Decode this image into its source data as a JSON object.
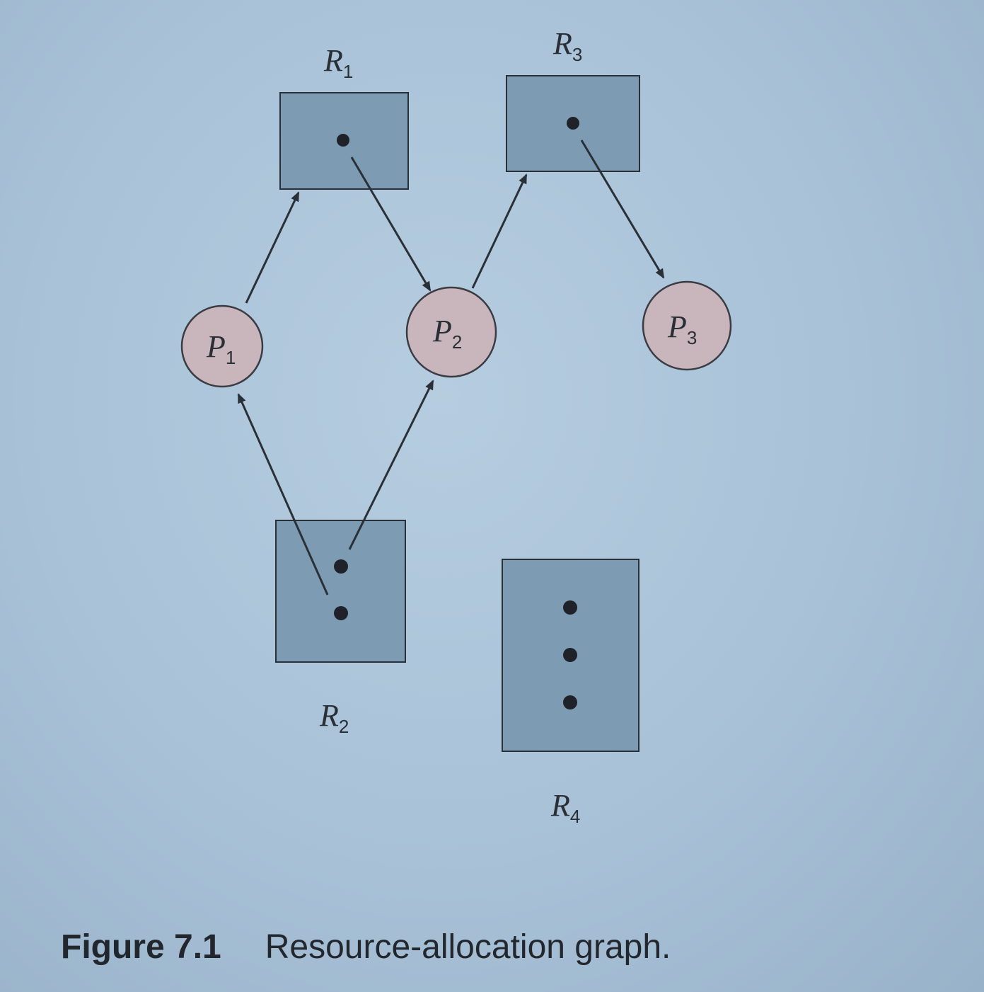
{
  "colors": {
    "resource_fill": "#7d9bb3",
    "resource_stroke": "#2a3038",
    "process_fill": "#c9b5bc",
    "process_stroke": "#3a3c42",
    "edge": "#2a3038",
    "dot": "#1f2329"
  },
  "resources": [
    {
      "id": "R1",
      "letter": "R",
      "sub": "1",
      "instances": 1
    },
    {
      "id": "R2",
      "letter": "R",
      "sub": "2",
      "instances": 2
    },
    {
      "id": "R3",
      "letter": "R",
      "sub": "3",
      "instances": 1
    },
    {
      "id": "R4",
      "letter": "R",
      "sub": "4",
      "instances": 3
    }
  ],
  "processes": [
    {
      "id": "P1",
      "letter": "P",
      "sub": "1"
    },
    {
      "id": "P2",
      "letter": "P",
      "sub": "2"
    },
    {
      "id": "P3",
      "letter": "P",
      "sub": "3"
    }
  ],
  "edges": [
    {
      "from": "P1",
      "to": "R1",
      "kind": "request"
    },
    {
      "from": "R1",
      "to": "P2",
      "kind": "assignment"
    },
    {
      "from": "P2",
      "to": "R3",
      "kind": "request"
    },
    {
      "from": "R3",
      "to": "P3",
      "kind": "assignment"
    },
    {
      "from": "R2",
      "to": "P1",
      "kind": "assignment"
    },
    {
      "from": "R2",
      "to": "P2",
      "kind": "assignment"
    }
  ],
  "caption": {
    "number": "Figure 7.1",
    "text": "Resource-allocation graph."
  }
}
